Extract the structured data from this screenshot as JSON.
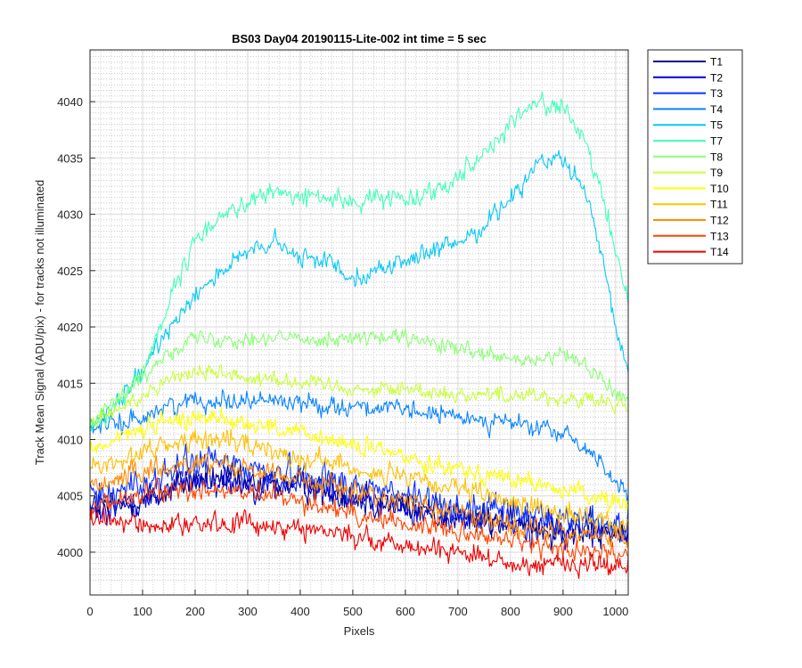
{
  "chart_data": {
    "type": "line",
    "title": "BS03 Day04 20190115-Lite-002 int time = 5 sec",
    "xlabel": "Pixels",
    "ylabel": "Track Mean Signal (ADU/pix) - for tracks not illuminated",
    "xlim": [
      0,
      1024
    ],
    "ylim": [
      3996.2,
      4044.6
    ],
    "xticks": [
      0,
      100,
      200,
      300,
      400,
      500,
      600,
      700,
      800,
      900,
      1000
    ],
    "yticks": [
      4000,
      4005,
      4010,
      4015,
      4020,
      4025,
      4030,
      4035,
      4040
    ],
    "grid": "major and minor",
    "legend_position": "outside top-right",
    "profile_x": [
      0,
      50,
      100,
      150,
      200,
      250,
      300,
      350,
      400,
      450,
      500,
      550,
      600,
      650,
      700,
      750,
      800,
      850,
      900,
      950,
      1000,
      1024
    ],
    "series": [
      {
        "name": "T1",
        "color": "#00008f",
        "noise": 2.6,
        "values": [
          4004,
          4004,
          4004.5,
          4005.5,
          4006.5,
          4006.5,
          4006,
          4006,
          4006,
          4005.5,
          4005,
          4004.5,
          4004,
          4003.5,
          4003,
          4002.8,
          4002.5,
          4002.2,
          4002,
          4001.8,
          4001.5,
          4001.5
        ]
      },
      {
        "name": "T2",
        "color": "#0000d0",
        "noise": 2.6,
        "values": [
          4004,
          4004,
          4004.5,
          4005.5,
          4006.5,
          4006.5,
          4006,
          4006,
          4006,
          4005.5,
          4005,
          4004.5,
          4004,
          4003.5,
          4003,
          4002.8,
          4002.5,
          4002.2,
          4002,
          4001.8,
          4001.5,
          4001.5
        ]
      },
      {
        "name": "T3",
        "color": "#0b30ff",
        "noise": 2.6,
        "values": [
          4005,
          4005.5,
          4006,
          4007,
          4008,
          4008,
          4007.5,
          4007,
          4007,
          4006.5,
          4006,
          4005.5,
          4005,
          4004.5,
          4004,
          4003.8,
          4003.5,
          4003.2,
          4003,
          4002.8,
          4002.5,
          4002.5
        ]
      },
      {
        "name": "T4",
        "color": "#0a84ff",
        "noise": 1.6,
        "values": [
          4011,
          4011.3,
          4012,
          4013,
          4013.5,
          4013.5,
          4013.5,
          4013.5,
          4013.3,
          4013,
          4013,
          4012.8,
          4012.5,
          4012.3,
          4012,
          4011.8,
          4011.5,
          4011,
          4010.5,
          4009,
          4006.5,
          4004.5
        ]
      },
      {
        "name": "T5",
        "color": "#0ac8f5",
        "noise": 1.6,
        "values": [
          4011,
          4013,
          4016,
          4020,
          4023,
          4025,
          4026.5,
          4027.5,
          4026,
          4026,
          4024.5,
          4025,
          4026,
          4026.5,
          4027.5,
          4029,
          4031.5,
          4034.5,
          4035,
          4031,
          4020,
          4016
        ]
      },
      {
        "name": "T7",
        "color": "#45ffb8",
        "noise": 1.6,
        "values": [
          4011,
          4013,
          4016,
          4022,
          4027.5,
          4030,
          4031,
          4032,
          4031.5,
          4031.5,
          4031,
          4031.5,
          4031.5,
          4032,
          4033.5,
          4035.5,
          4038,
          4040,
          4039.5,
          4035.5,
          4027,
          4022
        ]
      },
      {
        "name": "T8",
        "color": "#8aff75",
        "noise": 1.4,
        "values": [
          4012,
          4013.5,
          4015.5,
          4018,
          4019,
          4019,
          4019,
          4019,
          4019,
          4019,
          4019,
          4019,
          4019,
          4018.5,
          4018,
          4017.5,
          4017,
          4017,
          4017.5,
          4016.5,
          4014,
          4013.5
        ]
      },
      {
        "name": "T9",
        "color": "#c8ff38",
        "noise": 1.4,
        "values": [
          4011.5,
          4012.5,
          4014,
          4015.5,
          4016,
          4016,
          4015.5,
          4015.5,
          4015,
          4015,
          4014.5,
          4014.5,
          4014.5,
          4014.3,
          4014,
          4014,
          4014,
          4014,
          4013.5,
          4013.5,
          4013,
          4013
        ]
      },
      {
        "name": "T10",
        "color": "#ffff00",
        "noise": 1.6,
        "values": [
          4009,
          4010,
          4011,
          4011.5,
          4012,
          4012,
          4011.5,
          4011,
          4010.5,
          4010,
          4009.5,
          4009,
          4008.5,
          4008,
          4007.5,
          4007,
          4006.5,
          4006,
          4005.5,
          4005,
          4004.5,
          4004
        ]
      },
      {
        "name": "T11",
        "color": "#ffc000",
        "noise": 1.8,
        "values": [
          4007.5,
          4008,
          4009,
          4009.5,
          4010,
          4010,
          4009.5,
          4009,
          4008.5,
          4008,
          4007.5,
          4007,
          4006.5,
          4006,
          4005.5,
          4005,
          4004.5,
          4004,
          4003.5,
          4003,
          4002.5,
          4002.5
        ]
      },
      {
        "name": "T12",
        "color": "#ff8c00",
        "noise": 1.8,
        "values": [
          4006,
          4006.5,
          4007,
          4007.5,
          4008,
          4008,
          4007.5,
          4007,
          4006.5,
          4006,
          4005.5,
          4005,
          4004.5,
          4004,
          4003.5,
          4003,
          4002.5,
          4002,
          4001.8,
          4001.5,
          4001.2,
          4001
        ]
      },
      {
        "name": "T13",
        "color": "#ff4500",
        "noise": 1.8,
        "values": [
          4004,
          4004.5,
          4005,
          4005.5,
          4005.5,
          4005.5,
          4005,
          4005,
          4004.5,
          4004,
          4003.5,
          4003,
          4002.5,
          4002.3,
          4002,
          4001.5,
          4001,
          4000.5,
          4000.3,
          4000,
          4000,
          4000
        ]
      },
      {
        "name": "T14",
        "color": "#ee0000",
        "noise": 1.8,
        "values": [
          4003,
          4002.5,
          4002.5,
          4002.5,
          4002.5,
          4002.5,
          4002.5,
          4002.5,
          4002,
          4002,
          4001.5,
          4001,
          4000.5,
          4000.5,
          4000,
          3999.5,
          3999,
          3999,
          3999,
          3999,
          3999,
          3999
        ]
      }
    ]
  }
}
